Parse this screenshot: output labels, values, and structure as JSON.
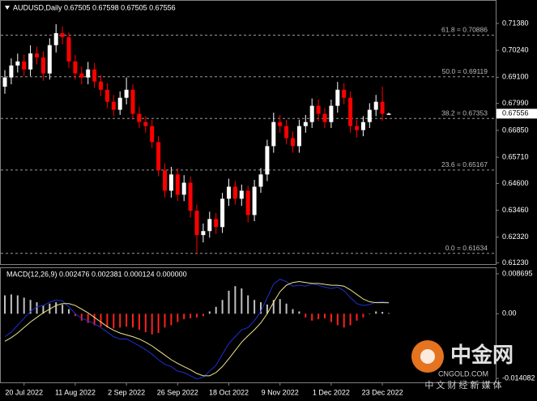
{
  "chart_data": {
    "type": "candlestick",
    "title": "AUDUSD,Daily  0.67505 0.67598 0.67505 0.67556",
    "categories": [
      null,
      null,
      null,
      "20 Jul 2022",
      null,
      null,
      null,
      null,
      null,
      null,
      null,
      "11 Aug 2022",
      null,
      null,
      null,
      null,
      null,
      null,
      null,
      "2 Sep 2022",
      null,
      null,
      null,
      null,
      null,
      null,
      null,
      "26 Sep 2022",
      null,
      null,
      null,
      null,
      null,
      null,
      null,
      "18 Oct 2022",
      null,
      null,
      null,
      null,
      null,
      null,
      null,
      "9 Nov 2022",
      null,
      null,
      null,
      null,
      null,
      null,
      null,
      "1 Dec 2022",
      null,
      null,
      null,
      null,
      null,
      null,
      null,
      "23 Dec 2022",
      null
    ],
    "ohlc": {
      "open": [
        0.687,
        0.6909,
        0.696,
        0.6977,
        0.6943,
        0.7011,
        0.6994,
        0.6926,
        0.7046,
        0.7097,
        0.708,
        0.6977,
        0.6926,
        0.6909,
        0.6943,
        0.6892,
        0.6857,
        0.6806,
        0.6772,
        0.6823,
        0.6857,
        0.6755,
        0.672,
        0.6703,
        0.6635,
        0.6515,
        0.6429,
        0.6498,
        0.6412,
        0.6463,
        0.6344,
        0.6241,
        0.6258,
        0.6309,
        0.6275,
        0.6395,
        0.6446,
        0.6395,
        0.6429,
        0.6326,
        0.6446,
        0.6498,
        0.6618,
        0.672,
        0.6703,
        0.6652,
        0.6618,
        0.6703,
        0.672,
        0.6789,
        0.6755,
        0.672,
        0.6789,
        0.6857,
        0.6823,
        0.6703,
        0.6686,
        0.672,
        0.6772,
        0.6806,
        0.67505
      ],
      "high": [
        0.694,
        0.699,
        0.701,
        0.7005,
        0.7045,
        0.704,
        0.702,
        0.7075,
        0.7135,
        0.7125,
        0.71,
        0.7005,
        0.6955,
        0.6975,
        0.697,
        0.692,
        0.6885,
        0.6835,
        0.685,
        0.6909,
        0.688,
        0.6785,
        0.6745,
        0.673,
        0.666,
        0.6545,
        0.653,
        0.6525,
        0.6495,
        0.649,
        0.637,
        0.629,
        0.634,
        0.6335,
        0.642,
        0.648,
        0.647,
        0.6455,
        0.645,
        0.6475,
        0.6525,
        0.6645,
        0.676,
        0.675,
        0.673,
        0.668,
        0.673,
        0.675,
        0.682,
        0.6815,
        0.678,
        0.6815,
        0.689,
        0.6885,
        0.685,
        0.673,
        0.6745,
        0.68,
        0.6835,
        0.687,
        0.67598
      ],
      "low": [
        0.684,
        0.688,
        0.693,
        0.6915,
        0.6915,
        0.6965,
        0.6895,
        0.69,
        0.7015,
        0.705,
        0.695,
        0.69,
        0.688,
        0.688,
        0.6865,
        0.683,
        0.678,
        0.6745,
        0.675,
        0.6795,
        0.673,
        0.6695,
        0.6675,
        0.661,
        0.649,
        0.64,
        0.64,
        0.6385,
        0.6385,
        0.6315,
        0.6163,
        0.621,
        0.623,
        0.6245,
        0.625,
        0.6365,
        0.637,
        0.6365,
        0.6295,
        0.63,
        0.642,
        0.647,
        0.659,
        0.6675,
        0.6625,
        0.659,
        0.659,
        0.6675,
        0.6695,
        0.6725,
        0.6695,
        0.6695,
        0.676,
        0.6795,
        0.6675,
        0.6655,
        0.666,
        0.6695,
        0.6745,
        0.6725,
        0.67505
      ],
      "close": [
        0.6909,
        0.696,
        0.6977,
        0.6943,
        0.7011,
        0.6994,
        0.6926,
        0.7046,
        0.7097,
        0.708,
        0.6977,
        0.6926,
        0.6909,
        0.6943,
        0.6892,
        0.6857,
        0.6806,
        0.6772,
        0.6823,
        0.6857,
        0.6755,
        0.672,
        0.6703,
        0.6635,
        0.6515,
        0.6429,
        0.6498,
        0.6412,
        0.6463,
        0.6344,
        0.6241,
        0.6258,
        0.6309,
        0.6275,
        0.6395,
        0.6446,
        0.6395,
        0.6429,
        0.6326,
        0.6446,
        0.6498,
        0.6618,
        0.672,
        0.6703,
        0.6652,
        0.6618,
        0.6703,
        0.672,
        0.6789,
        0.6755,
        0.672,
        0.6789,
        0.6857,
        0.6823,
        0.6703,
        0.6686,
        0.672,
        0.6772,
        0.6806,
        0.6755,
        0.67556
      ]
    },
    "up_color": "#ffffff",
    "down_color": "#ff0000",
    "ylim": [
      0.6118,
      0.7234
    ],
    "yticks": [
      {
        "value": 0.7138,
        "label": "0.71380"
      },
      {
        "value": 0.7024,
        "label": "0.70240"
      },
      {
        "value": 0.691,
        "label": "0.69100"
      },
      {
        "value": 0.6799,
        "label": "0.67990"
      },
      {
        "value": 0.6685,
        "label": "0.66850"
      },
      {
        "value": 0.6571,
        "label": "0.65710"
      },
      {
        "value": 0.646,
        "label": "0.64600"
      },
      {
        "value": 0.6346,
        "label": "0.63460"
      },
      {
        "value": 0.6232,
        "label": "0.62320"
      },
      {
        "value": 0.6123,
        "label": "0.61230"
      }
    ],
    "current_price": 0.67556,
    "fib_levels": [
      {
        "label": "61.8 = 0.70886",
        "value": 0.70886
      },
      {
        "label": "50.0 = 0.69119",
        "value": 0.69119
      },
      {
        "label": "38.2 = 0.67353",
        "value": 0.67353
      },
      {
        "label": "23.6 = 0.65167",
        "value": 0.65167
      },
      {
        "label": "0.0 = 0.61634",
        "value": 0.61634
      }
    ],
    "macd": {
      "title": "MACD(12,26,9) 0.002476 0.002381 0.000124 0.000000",
      "ylim": [
        -0.01846,
        0.00992
      ],
      "yticks": [
        0.008695,
        {
          "value": 0,
          "label": "0.00"
        },
        -0.014082
      ],
      "histogram": {
        "up_color": "#c0c0c0",
        "down_color": "#ff2020",
        "values": [
          0.004,
          0.0042,
          0.004,
          0.0035,
          0.003,
          0.0025,
          0.0018,
          0.0022,
          0.0025,
          0.002,
          0.001,
          -0.0005,
          -0.0015,
          -0.002,
          -0.0025,
          -0.0028,
          -0.003,
          -0.0032,
          -0.003,
          -0.0028,
          -0.003,
          -0.0035,
          -0.004,
          -0.0045,
          -0.0042,
          -0.003,
          -0.0025,
          -0.0018,
          -0.0012,
          -0.001,
          -0.0008,
          -0.0005,
          0.0005,
          0.0015,
          0.003,
          0.005,
          0.006,
          0.0055,
          0.004,
          0.003,
          0.0025,
          0.002,
          0.003,
          0.0032,
          0.0022,
          0.001,
          0.0005,
          -0.0008,
          -0.0015,
          -0.0012,
          -0.001,
          -0.0018,
          -0.0025,
          -0.003,
          -0.0025,
          -0.0015,
          -0.0008,
          0.0,
          0.0005,
          0.0004,
          0.000124
        ]
      },
      "lines": [
        {
          "color": "#1e2fd0",
          "values": [
            -0.005,
            -0.004,
            -0.0025,
            -0.001,
            0.0005,
            0.0015,
            0.0018,
            0.0025,
            0.003,
            0.0028,
            0.0015,
            0.0,
            -0.001,
            -0.0015,
            -0.0022,
            -0.003,
            -0.004,
            -0.005,
            -0.0055,
            -0.0055,
            -0.0062,
            -0.007,
            -0.0078,
            -0.0088,
            -0.01,
            -0.011,
            -0.0115,
            -0.0125,
            -0.0128,
            -0.0135,
            -0.0142,
            -0.0138,
            -0.0125,
            -0.0112,
            -0.0088,
            -0.0065,
            -0.005,
            -0.0035,
            -0.003,
            -0.0015,
            0.0005,
            0.0035,
            0.0065,
            0.0075,
            0.007,
            0.006,
            0.0062,
            0.006,
            0.0065,
            0.0062,
            0.0058,
            0.0055,
            0.0058,
            0.005,
            0.0035,
            0.0022,
            0.0018,
            0.002,
            0.0025,
            0.0026,
            0.002476
          ]
        },
        {
          "color": "#f0e68c",
          "values": [
            -0.006,
            -0.0052,
            -0.0042,
            -0.003,
            -0.0018,
            -0.0008,
            0.0002,
            0.001,
            0.0018,
            0.0022,
            0.0022,
            0.0018,
            0.001,
            0.0002,
            -0.0008,
            -0.0018,
            -0.0028,
            -0.0036,
            -0.0042,
            -0.0046,
            -0.005,
            -0.0055,
            -0.0062,
            -0.007,
            -0.008,
            -0.009,
            -0.01,
            -0.0108,
            -0.0115,
            -0.0122,
            -0.013,
            -0.0135,
            -0.0135,
            -0.0128,
            -0.0115,
            -0.0098,
            -0.008,
            -0.0062,
            -0.0048,
            -0.0035,
            -0.002,
            0.0,
            0.0025,
            0.0048,
            0.0062,
            0.0068,
            0.007,
            0.0068,
            0.0066,
            0.0066,
            0.0064,
            0.0062,
            0.0062,
            0.006,
            0.0052,
            0.0042,
            0.0032,
            0.0026,
            0.0024,
            0.0024,
            0.002381
          ]
        }
      ]
    }
  },
  "watermark": {
    "brand": "中金网",
    "site": "CNGOLD.COM",
    "slogan": "中 文 财 经 新 媒 体"
  }
}
